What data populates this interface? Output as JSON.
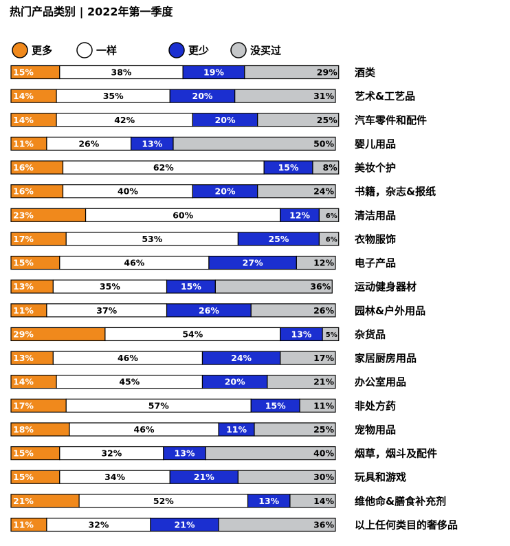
{
  "chart_data": {
    "type": "stacked-bar",
    "orientation": "horizontal",
    "title": "热门产品类别 | 2022年第一季度",
    "xlim": [
      0,
      100
    ],
    "categories": [
      "酒类",
      "艺术&工艺品",
      "汽车零件和配件",
      "婴儿用品",
      "美妆个护",
      "书籍，杂志&报纸",
      "清洁用品",
      "衣物服饰",
      "电子产品",
      "运动健身器材",
      "园林&户外用品",
      "杂货品",
      "家居厨房用品",
      "办公室用品",
      "非处方药",
      "宠物用品",
      "烟草，烟斗及配件",
      "玩具和游戏",
      "维他命&膳食补充剂",
      "以上任何类目的奢侈品"
    ],
    "series": [
      {
        "name": "更多",
        "color": "#f0891c",
        "text_color": "#ffffff",
        "values": [
          15,
          14,
          14,
          11,
          16,
          16,
          23,
          17,
          15,
          13,
          11,
          29,
          13,
          14,
          17,
          18,
          15,
          15,
          21,
          11
        ],
        "value_labels": [
          "15%",
          "14%",
          "14%",
          "11%",
          "16%",
          "16%",
          "23%",
          "17%",
          "15%",
          "13%",
          "11%",
          "29%",
          "13%",
          "14%",
          "17%",
          "18%",
          "15%",
          "15%",
          "21%",
          "11%"
        ]
      },
      {
        "name": "一样",
        "color": "#ffffff",
        "text_color": "#000000",
        "values": [
          38,
          35,
          42,
          26,
          62,
          40,
          60,
          53,
          46,
          35,
          37,
          54,
          46,
          45,
          57,
          46,
          32,
          34,
          52,
          32
        ],
        "value_labels": [
          "38%",
          "35%",
          "42%",
          "26%",
          "62%",
          "40%",
          "60%",
          "53%",
          "46%",
          "35%",
          "37%",
          "54%",
          "46%",
          "45%",
          "57%",
          "46%",
          "32%",
          "34%",
          "52%",
          "32%"
        ]
      },
      {
        "name": "更少",
        "color": "#1b2fd0",
        "text_color": "#ffffff",
        "values": [
          19,
          20,
          20,
          13,
          15,
          20,
          12,
          25,
          27,
          15,
          26,
          13,
          24,
          20,
          15,
          11,
          13,
          21,
          13,
          21
        ],
        "value_labels": [
          "19%",
          "20%",
          "20%",
          "13%",
          "15%",
          "20%",
          "12%",
          "25%",
          "27%",
          "15%",
          "26%",
          "13%",
          "24%",
          "20%",
          "15%",
          "11%",
          "13%",
          "21%",
          "13%",
          "21%"
        ]
      },
      {
        "name": "没买过",
        "color": "#c5c7c9",
        "text_color": "#000000",
        "values": [
          29,
          31,
          25,
          50,
          8,
          24,
          6,
          6,
          12,
          36,
          26,
          5,
          17,
          21,
          11,
          25,
          40,
          30,
          14,
          36
        ],
        "value_labels": [
          "29%",
          "31%",
          "25%",
          "50%",
          "8%",
          "24%",
          "6%",
          "6%",
          "12%",
          "36%",
          "26%",
          "5%",
          "17%",
          "21%",
          "11%",
          "25%",
          "40%",
          "30%",
          "14%",
          "36%"
        ]
      }
    ]
  }
}
